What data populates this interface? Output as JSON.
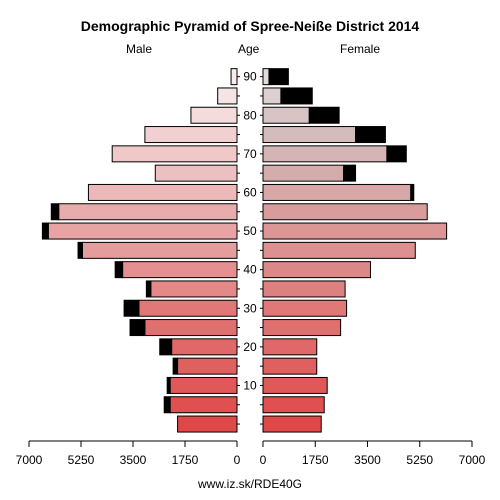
{
  "chart_data": {
    "type": "bar",
    "title": "Demographic Pyramid of Spree-Neiße District 2014",
    "left_label": "Male",
    "center_label": "Age",
    "right_label": "Female",
    "footer": "www.iz.sk/RDE40G",
    "age_tick_labels": [
      "10",
      "20",
      "30",
      "40",
      "50",
      "60",
      "70",
      "80",
      "90"
    ],
    "x_tick_labels_left": [
      "7000",
      "5250",
      "3500",
      "1750",
      "0"
    ],
    "x_tick_labels_right": [
      "0",
      "1750",
      "3500",
      "5250",
      "7000"
    ],
    "xlim": [
      0,
      7000
    ],
    "age_groups": [
      "0-4",
      "5-9",
      "10-14",
      "15-19",
      "20-24",
      "25-29",
      "30-34",
      "35-39",
      "40-44",
      "45-49",
      "50-54",
      "55-59",
      "60-64",
      "65-69",
      "70-74",
      "75-79",
      "80-84",
      "85-89",
      "90+"
    ],
    "series": [
      {
        "name": "Male",
        "values": [
          2000,
          2250,
          2250,
          2000,
          2200,
          3100,
          3300,
          2900,
          3850,
          5200,
          6350,
          6000,
          5000,
          2750,
          4200,
          3100,
          1550,
          650,
          200
        ],
        "extra": [
          0,
          200,
          100,
          150,
          400,
          500,
          500,
          150,
          250,
          150,
          200,
          250,
          0,
          0,
          0,
          0,
          0,
          0,
          0
        ]
      },
      {
        "name": "Female",
        "values": [
          1950,
          2050,
          2150,
          1800,
          1800,
          2600,
          2800,
          2750,
          3600,
          5100,
          6150,
          5500,
          4950,
          2700,
          4150,
          3100,
          1550,
          600,
          200
        ],
        "extra": [
          0,
          0,
          0,
          0,
          0,
          0,
          0,
          0,
          0,
          0,
          0,
          0,
          100,
          400,
          650,
          1000,
          1000,
          1050,
          650
        ]
      }
    ],
    "colors": {
      "male_fills": [
        "#e04848",
        "#e05050",
        "#e05858",
        "#e06060",
        "#e06868",
        "#e07070",
        "#e07878",
        "#e48888",
        "#e49090",
        "#e49c9c",
        "#e8a4a4",
        "#e8acac",
        "#ecb8b8",
        "#ecc0c0",
        "#f0c8c8",
        "#f0d0d0",
        "#f4dcdc",
        "#f4e4e4",
        "#f8ecec"
      ],
      "female_fills": [
        "#e04848",
        "#e05050",
        "#e05858",
        "#e06060",
        "#e06868",
        "#e07070",
        "#e07878",
        "#dc8080",
        "#dc8888",
        "#dc9090",
        "#dc9696",
        "#d89c9c",
        "#d8a8a8",
        "#d4acac",
        "#d4b4b4",
        "#d4bcbc",
        "#d8c4c4",
        "#dcd0d0",
        "#e4dcdc"
      ],
      "extra": "#000000"
    }
  }
}
